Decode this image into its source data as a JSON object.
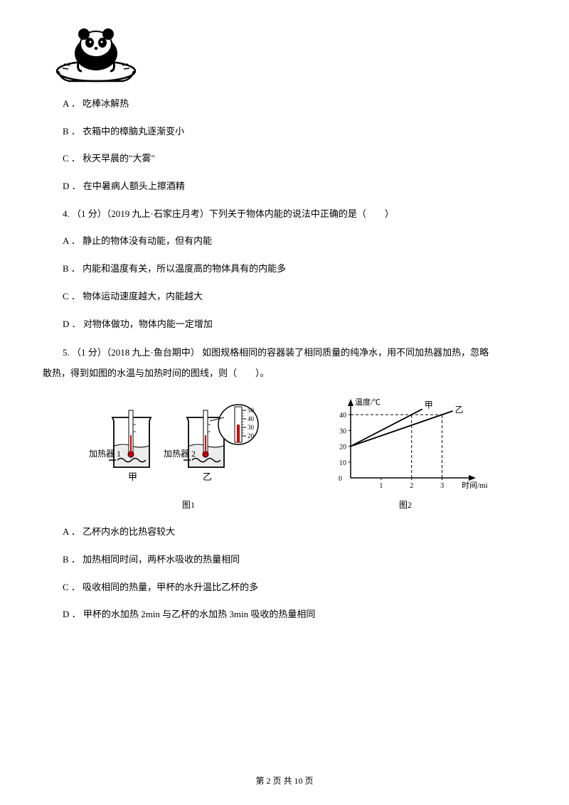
{
  "q3": {
    "options": {
      "a": "A ． 吃棒冰解热",
      "b": "B ． 衣箱中的樟脑丸逐渐变小",
      "c": "C ． 秋天早晨的\"大雾\"",
      "d": "D ． 在中暑病人额头上擦酒精"
    }
  },
  "q4": {
    "stem": "4. （1 分）（2019 九上·石家庄月考）下列关于物体内能的说法中正确的是（　　）",
    "options": {
      "a": "A ． 静止的物体没有动能，但有内能",
      "b": "B ． 内能和温度有关，所以温度高的物体具有的内能多",
      "c": "C ． 物体运动速度越大，内能越大",
      "d": "D ． 对物体做功，物体内能一定增加"
    }
  },
  "q5": {
    "stem_line1": "5. （1 分）（2018 九上·鱼台期中） 如图规格相同的容器装了相同质量的纯净水，用不同加热器加热，忽略",
    "stem_line2": "散热，得到如图的水温与加热时间的图线，则（　　）。",
    "options": {
      "a": "A ． 乙杯内水的比热容较大",
      "b": "B ． 加热相同时间，两杯水吸收的热量相同",
      "c": "C ． 吸收相同的热量，甲杯的水升温比乙杯的多",
      "d": "D ． 甲杯的水加热 2min 与乙杯的水加热 3min 吸收的热量相同"
    },
    "fig1": {
      "heater1_label": "加热器 1",
      "heater2_label": "加热器 2",
      "cup1_label": "甲",
      "cup2_label": "乙",
      "caption": "图1",
      "thermo_marks": [
        "50",
        "40",
        "30",
        "20"
      ]
    },
    "fig2": {
      "caption": "图2",
      "ylabel": "温度/℃",
      "xlabel": "时间/min",
      "line1_label": "甲",
      "line2_label": "乙",
      "yticks": [
        0,
        10,
        20,
        30,
        40
      ],
      "xticks": [
        0,
        1,
        2,
        3
      ],
      "ylim": [
        0,
        45
      ],
      "xlim": [
        0,
        3.5
      ],
      "grid_color": "#000000",
      "bg_color": "#ffffff",
      "line_color": "#000000",
      "axis_fontsize": 10,
      "series": {
        "甲": [
          [
            0,
            20
          ],
          [
            2,
            40
          ]
        ],
        "乙": [
          [
            0,
            20
          ],
          [
            3,
            40
          ]
        ]
      },
      "dashed": [
        [
          [
            0,
            40
          ],
          [
            3,
            40
          ]
        ],
        [
          [
            2,
            0
          ],
          [
            2,
            40
          ]
        ],
        [
          [
            3,
            0
          ],
          [
            3,
            40
          ]
        ]
      ]
    }
  },
  "footer": "第 2 页 共 10 页"
}
